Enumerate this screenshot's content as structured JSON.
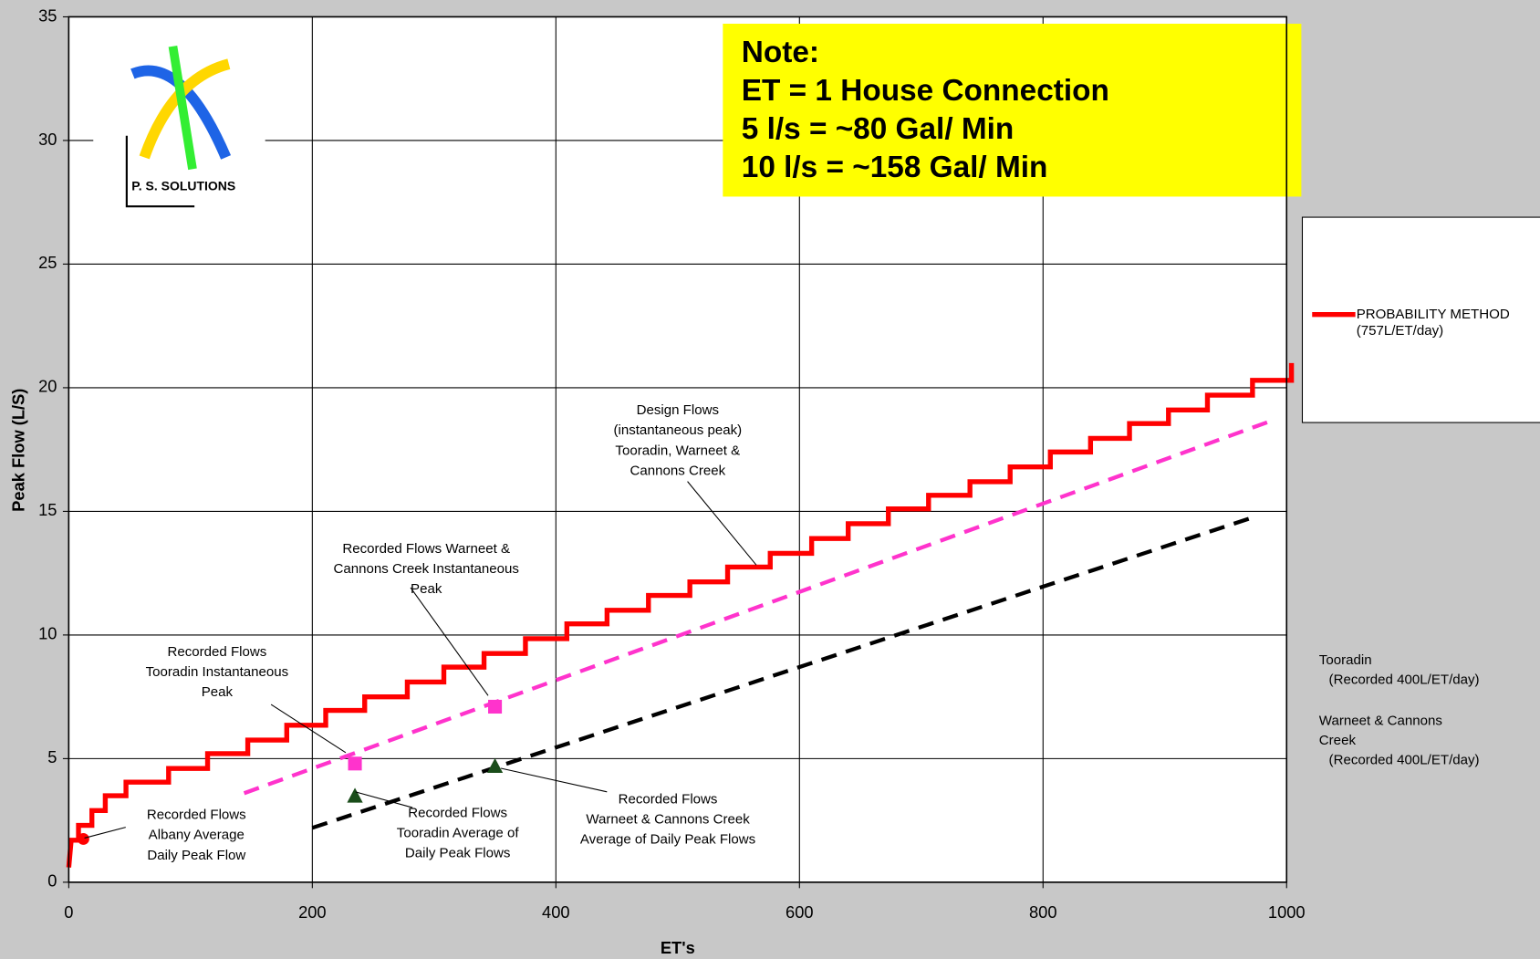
{
  "chart_data": {
    "type": "line",
    "xlabel": "ET's",
    "ylabel": "Peak Flow (L/S)",
    "xlim": [
      0,
      1000
    ],
    "xticks": [
      0,
      200,
      400,
      600,
      800,
      1000
    ],
    "ylim": [
      0,
      35
    ],
    "yticks": [
      0,
      5,
      10,
      15,
      20,
      25,
      30,
      35
    ],
    "grid": true,
    "legend": "right",
    "logo_text": "P. S. SOLUTIONS",
    "note": [
      "Note:",
      "ET = 1 House Connection",
      "5 l/s = ~80 Gal/ Min",
      "10 l/s = ~158 Gal/ Min"
    ],
    "side_notes": [
      {
        "title": "Tooradin",
        "detail": "(Recorded 400L/ET/day)"
      },
      {
        "title": "Warneet & Cannons Creek",
        "detail": "(Recorded 400L/ET/day)"
      }
    ],
    "annotations": [
      [
        "Design Flows",
        "(instantaneous peak)",
        "Tooradin, Warneet &",
        "Cannons Creek"
      ],
      [
        "Recorded Flows Warneet &",
        "Cannons Creek Instantaneous",
        "Peak"
      ],
      [
        "Recorded Flows",
        "Tooradin Instantaneous",
        "Peak"
      ],
      [
        "Recorded Flows",
        "Albany Average",
        "Daily Peak  Flow"
      ],
      [
        "Recorded Flows",
        "Tooradin Average of",
        "Daily Peak  Flows"
      ],
      [
        "Recorded Flows",
        "Warneet & Cannons Creek",
        "Average of Daily Peak Flows"
      ]
    ],
    "series": [
      {
        "name": "PROBABILITY METHOD (757L/ET/day)",
        "color": "#ff0000",
        "style": "solid",
        "x": [
          0,
          2,
          8,
          8,
          19,
          19,
          30,
          30,
          47,
          47,
          82,
          82,
          114,
          114,
          147,
          147,
          179,
          179,
          211,
          211,
          243,
          243,
          278,
          278,
          308,
          308,
          341,
          341,
          375,
          375,
          409,
          409,
          442,
          442,
          476,
          476,
          510,
          510,
          541,
          541,
          576,
          576,
          610,
          610,
          640,
          640,
          673,
          673,
          706,
          706,
          740,
          740,
          773,
          773,
          806,
          806,
          839,
          839,
          871,
          871,
          903,
          903,
          935,
          935,
          972,
          972,
          1004,
          1004
        ],
        "values": [
          0.6,
          1.7,
          1.7,
          2.3,
          2.3,
          2.9,
          2.9,
          3.5,
          3.5,
          4.05,
          4.05,
          4.6,
          4.6,
          5.2,
          5.2,
          5.75,
          5.75,
          6.35,
          6.35,
          6.95,
          6.95,
          7.5,
          7.5,
          8.1,
          8.1,
          8.7,
          8.7,
          9.25,
          9.25,
          9.85,
          9.85,
          10.45,
          10.45,
          11.0,
          11.0,
          11.6,
          11.6,
          12.15,
          12.15,
          12.75,
          12.75,
          13.3,
          13.3,
          13.9,
          13.9,
          14.5,
          14.5,
          15.1,
          15.1,
          15.65,
          15.65,
          16.2,
          16.2,
          16.8,
          16.8,
          17.4,
          17.4,
          17.95,
          17.95,
          18.55,
          18.55,
          19.1,
          19.1,
          19.7,
          19.7,
          20.3,
          20.3,
          21.0
        ]
      },
      {
        "color": "#ff33cc",
        "style": "dashed",
        "x": [
          144,
          984
        ],
        "values": [
          3.6,
          18.6
        ]
      },
      {
        "color": "#000000",
        "style": "dashed",
        "x": [
          200,
          975
        ],
        "values": [
          2.2,
          14.8
        ]
      },
      {
        "color": "#ff0000",
        "marker": "circle",
        "x": [
          12
        ],
        "values": [
          1.75
        ]
      },
      {
        "color": "#ff33cc",
        "marker": "square",
        "x": [
          235,
          350
        ],
        "values": [
          4.8,
          7.1
        ]
      },
      {
        "color": "#1a4d1a",
        "marker": "triangle",
        "x": [
          235,
          350
        ],
        "values": [
          3.5,
          4.7
        ]
      }
    ]
  }
}
